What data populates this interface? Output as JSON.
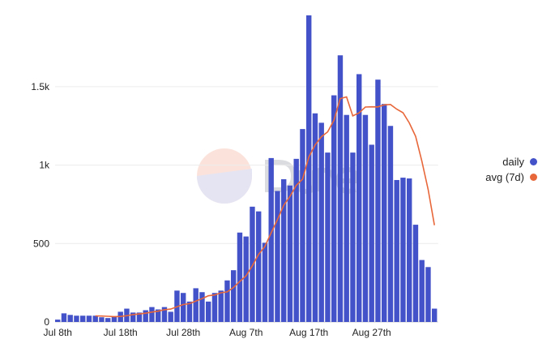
{
  "chart_data": {
    "type": "bar",
    "x_start": "Jul 8th",
    "xticks": [
      "Jul 8th",
      "Jul 18th",
      "Jul 28th",
      "Aug 7th",
      "Aug 17th",
      "Aug 27th"
    ],
    "yticks": [
      "0",
      "500",
      "1k",
      "1.5k"
    ],
    "ylim": [
      0,
      1950
    ],
    "grid": true,
    "legend_position": "right",
    "series": [
      {
        "name": "daily",
        "kind": "bar",
        "color": "#4352c8",
        "values": [
          15,
          55,
          45,
          40,
          40,
          40,
          40,
          30,
          25,
          35,
          65,
          85,
          60,
          60,
          75,
          95,
          80,
          95,
          65,
          200,
          185,
          130,
          215,
          190,
          130,
          185,
          200,
          265,
          330,
          570,
          545,
          735,
          705,
          505,
          1045,
          835,
          910,
          870,
          1040,
          1230,
          1955,
          1330,
          1270,
          1080,
          1445,
          1700,
          1320,
          1080,
          1580,
          1320,
          1130,
          1545,
          1390,
          1250,
          905,
          920,
          915,
          620,
          395,
          350,
          85
        ]
      },
      {
        "name": "avg (7d)",
        "kind": "line",
        "color": "#e8673a",
        "values": [
          null,
          null,
          null,
          null,
          null,
          null,
          39,
          38,
          36,
          34,
          35,
          40,
          47,
          51,
          56,
          63,
          69,
          78,
          82,
          97,
          111,
          117,
          133,
          149,
          167,
          172,
          186,
          192,
          220,
          258,
          294,
          358,
          431,
          481,
          568,
          652,
          744,
          801,
          871,
          910,
          1052,
          1128,
          1181,
          1212,
          1286,
          1424,
          1435,
          1314,
          1333,
          1370,
          1372,
          1371,
          1384,
          1387,
          1357,
          1334,
          1269,
          1183,
          1025,
          843,
          617
        ]
      }
    ]
  }
}
